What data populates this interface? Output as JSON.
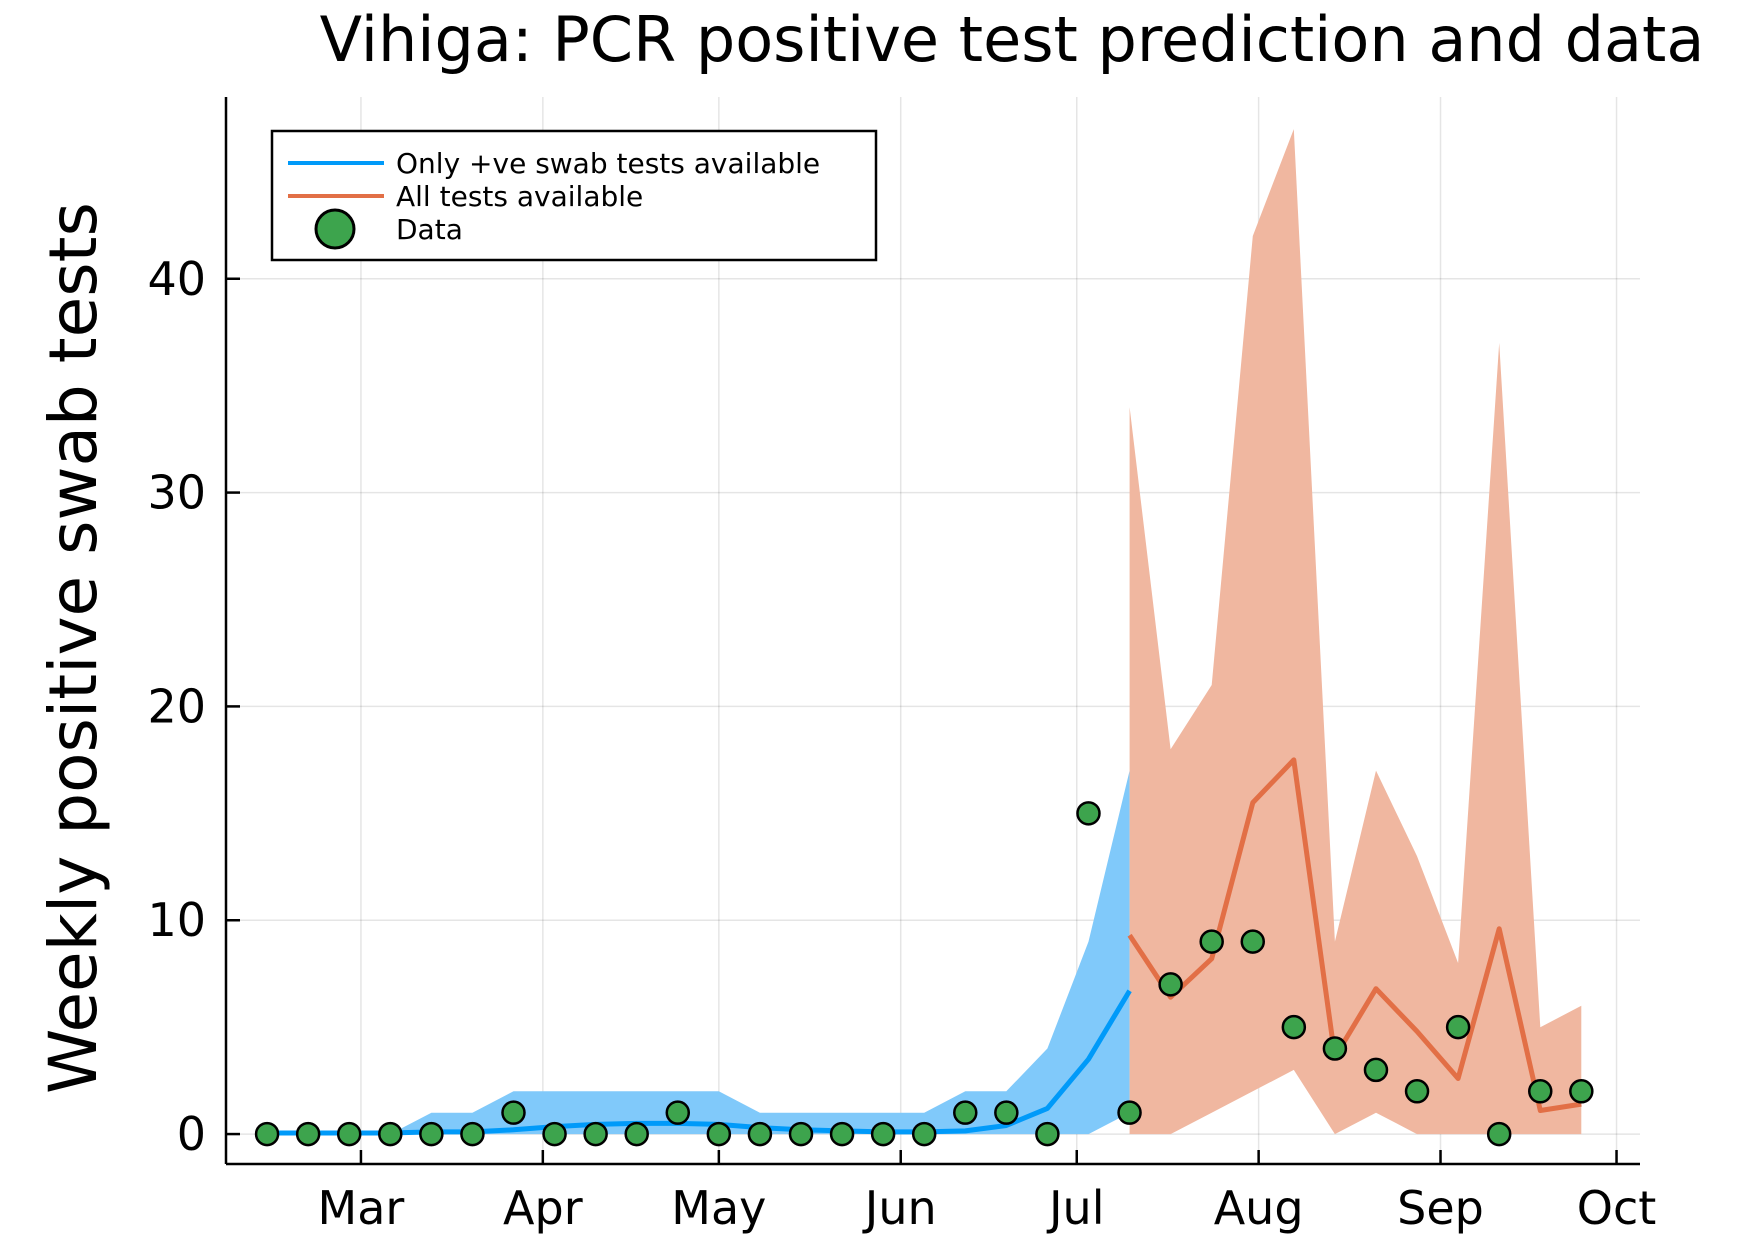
{
  "chart_data": {
    "type": "line",
    "title": "Vihiga: PCR positive test prediction and data",
    "ylabel": "Weekly positive swab tests",
    "xlabel": "",
    "x_ticks": [
      "Mar",
      "Apr",
      "May",
      "Jun",
      "Jul",
      "Aug",
      "Sep",
      "Oct"
    ],
    "y_ticks": [
      0,
      10,
      20,
      30,
      40
    ],
    "ylim": [
      -1.4,
      48.5
    ],
    "xlim": [
      "2020-02-07",
      "2020-10-05"
    ],
    "grid": true,
    "legend": "top-left",
    "colors": {
      "blue_line": "#009af9",
      "blue_band": "#80c9fa",
      "orange_line": "#e26f46",
      "orange_band": "#f0b7a0",
      "data_point": "#3da44d"
    },
    "series": [
      {
        "name": "Only +ve swab tests available",
        "x": [
          "2020-02-14",
          "2020-02-21",
          "2020-02-28",
          "2020-03-06",
          "2020-03-13",
          "2020-03-20",
          "2020-03-27",
          "2020-04-03",
          "2020-04-10",
          "2020-04-17",
          "2020-04-24",
          "2020-05-01",
          "2020-05-08",
          "2020-05-15",
          "2020-05-22",
          "2020-05-29",
          "2020-06-05",
          "2020-06-12",
          "2020-06-19",
          "2020-06-26",
          "2020-07-03",
          "2020-07-10"
        ],
        "y": [
          0.05,
          0.05,
          0.05,
          0.05,
          0.1,
          0.1,
          0.2,
          0.35,
          0.45,
          0.5,
          0.5,
          0.45,
          0.3,
          0.2,
          0.15,
          0.1,
          0.1,
          0.15,
          0.4,
          1.2,
          3.5,
          6.7
        ],
        "lower": [
          0,
          0,
          0,
          0,
          0,
          0,
          0,
          0,
          0,
          0,
          0,
          0,
          0,
          0,
          0,
          0,
          0,
          0,
          0,
          0,
          0,
          1
        ],
        "upper": [
          0,
          0,
          0,
          0,
          1,
          1,
          2,
          2,
          2,
          2,
          2,
          2,
          1,
          1,
          1,
          1,
          1,
          2,
          2,
          4,
          9,
          17
        ]
      },
      {
        "name": "All tests available",
        "x": [
          "2020-07-10",
          "2020-07-17",
          "2020-07-24",
          "2020-07-31",
          "2020-08-07",
          "2020-08-14",
          "2020-08-21",
          "2020-08-28",
          "2020-09-04",
          "2020-09-11",
          "2020-09-18",
          "2020-09-25"
        ],
        "y": [
          9.3,
          6.4,
          8.2,
          15.5,
          17.5,
          3.6,
          6.8,
          4.8,
          2.6,
          9.6,
          1.1,
          1.4
        ],
        "lower": [
          0,
          0,
          1,
          2,
          3,
          0,
          1,
          0,
          0,
          0,
          0,
          0
        ],
        "upper": [
          34,
          18,
          21,
          42,
          47,
          9,
          17,
          13,
          8,
          37,
          5,
          6
        ]
      },
      {
        "name": "Data",
        "x": [
          "2020-02-14",
          "2020-02-21",
          "2020-02-28",
          "2020-03-06",
          "2020-03-13",
          "2020-03-20",
          "2020-03-27",
          "2020-04-03",
          "2020-04-10",
          "2020-04-17",
          "2020-04-24",
          "2020-05-01",
          "2020-05-08",
          "2020-05-15",
          "2020-05-22",
          "2020-05-29",
          "2020-06-05",
          "2020-06-12",
          "2020-06-19",
          "2020-06-26",
          "2020-07-03",
          "2020-07-10",
          "2020-07-17",
          "2020-07-24",
          "2020-07-31",
          "2020-08-07",
          "2020-08-14",
          "2020-08-21",
          "2020-08-28",
          "2020-09-04",
          "2020-09-11",
          "2020-09-18",
          "2020-09-25"
        ],
        "y": [
          0,
          0,
          0,
          0,
          0,
          0,
          1,
          0,
          0,
          0,
          1,
          0,
          0,
          0,
          0,
          0,
          0,
          1,
          1,
          0,
          15,
          1,
          7,
          9,
          9,
          5,
          4,
          3,
          2,
          5,
          0,
          2,
          2
        ]
      }
    ]
  }
}
